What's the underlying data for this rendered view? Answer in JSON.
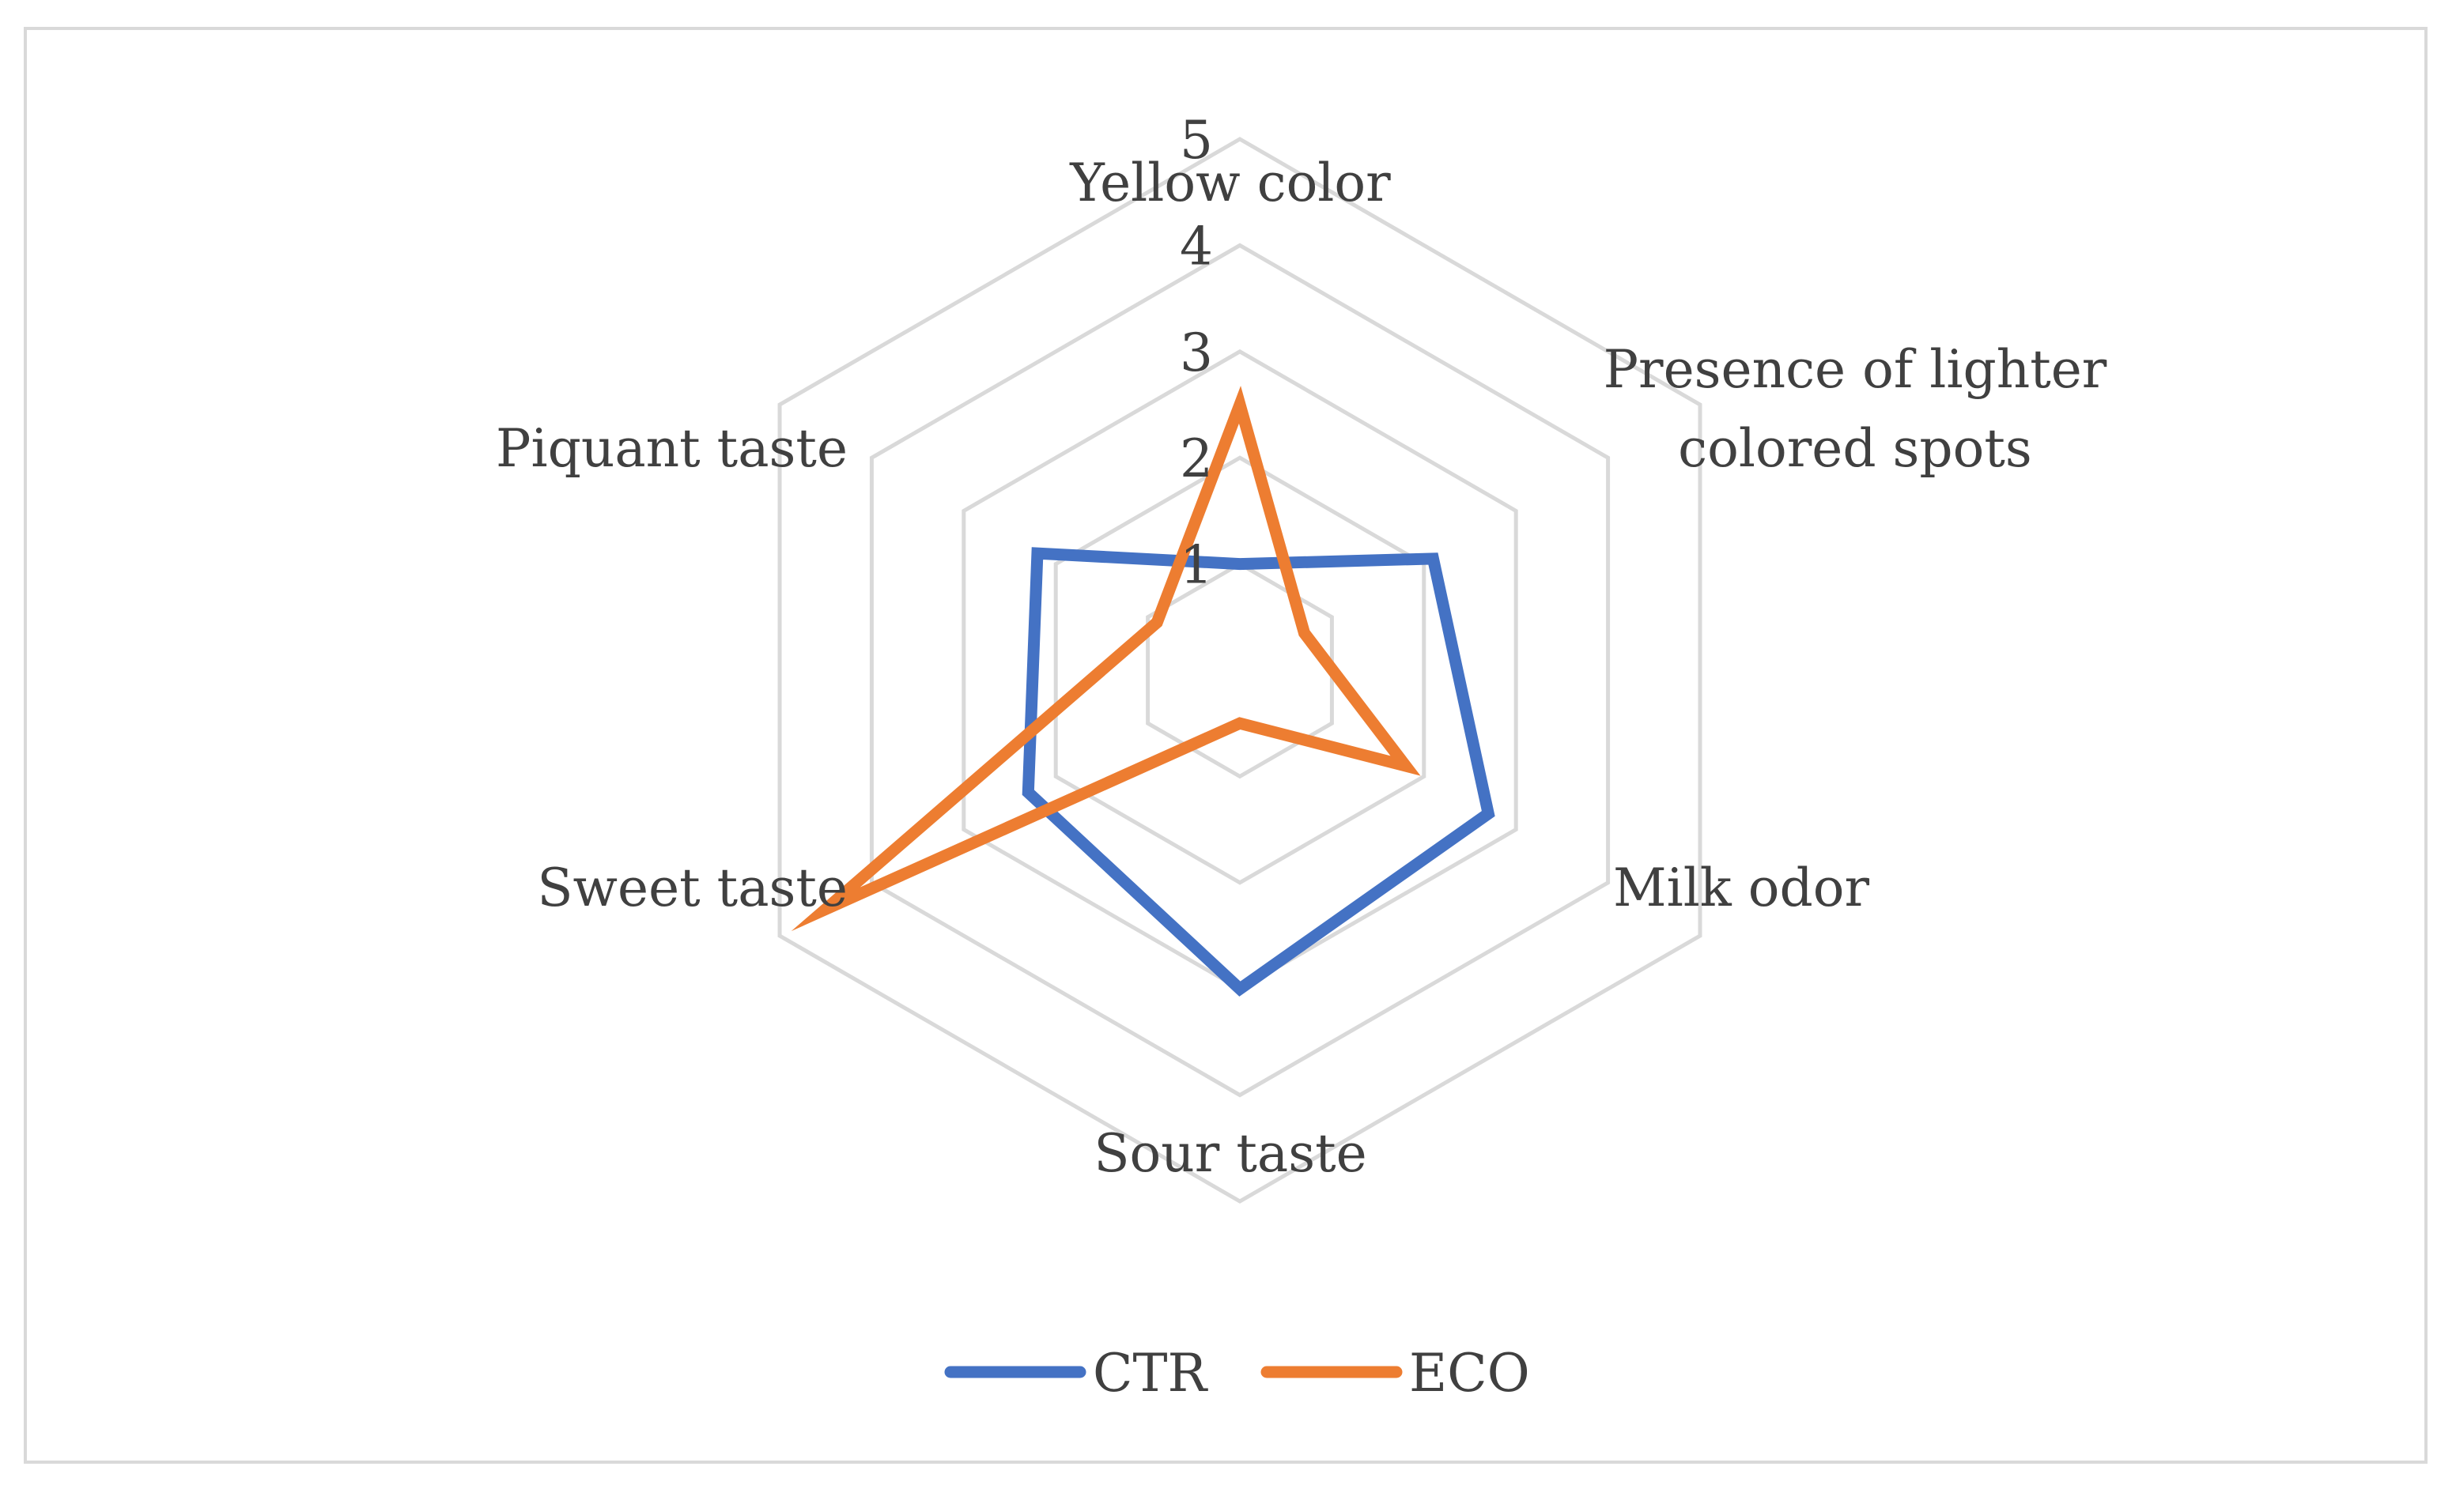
{
  "chart_data": {
    "type": "radar",
    "title": "",
    "categories": [
      "Yellow color",
      "Presence of lighter colored spots",
      "Milk odor",
      "Sour taste",
      "Sweet taste",
      "Piquant taste"
    ],
    "category_lines": [
      [
        "Yellow color"
      ],
      [
        "Presence of lighter",
        "colored spots"
      ],
      [
        "Milk odor"
      ],
      [
        "Sour taste"
      ],
      [
        "Sweet taste"
      ],
      [
        "Piquant taste"
      ]
    ],
    "radial_ticks": [
      "1",
      "2",
      "3",
      "4",
      "5"
    ],
    "rlim": [
      0,
      5
    ],
    "series": [
      {
        "name": "CTR",
        "color": "#4472C4",
        "values": [
          1.0,
          2.1,
          2.7,
          3.0,
          2.3,
          2.2
        ]
      },
      {
        "name": "ECO",
        "color": "#ED7D31",
        "values": [
          2.5,
          0.7,
          1.8,
          0.5,
          4.5,
          0.9
        ]
      }
    ],
    "grid": true,
    "grid_color": "#d9d9d9",
    "legend_position": "bottom"
  }
}
